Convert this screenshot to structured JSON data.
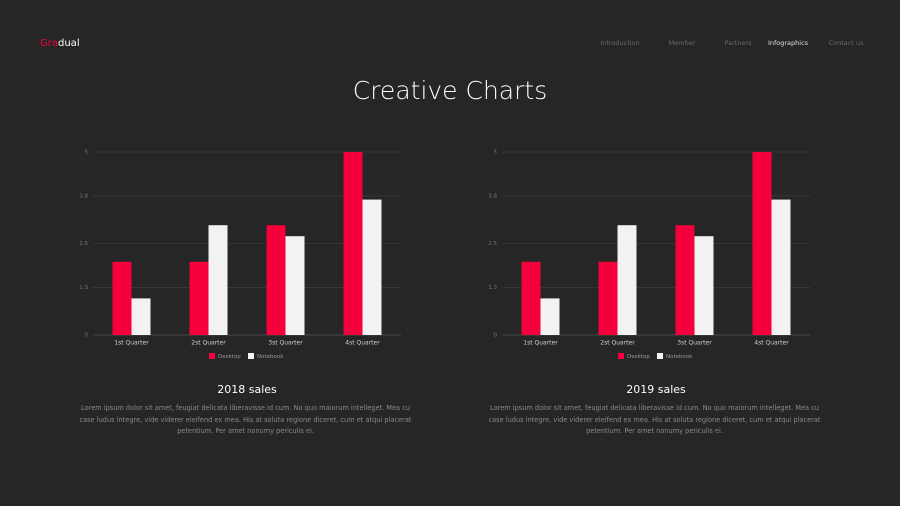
{
  "logo": {
    "accent": "Gra",
    "rest": "dual"
  },
  "nav": [
    "Introduction",
    "Member",
    "Partners",
    "Infographics",
    "Contact us"
  ],
  "nav_active": 3,
  "title": "Creative Charts",
  "chart_data": [
    {
      "type": "bar",
      "title": "2018 sales",
      "description": "Lorem ipsum dolor sit amet, feugiat delicata liberavisse id cum. No quo maiorum intelleget. Mea cu case ludus integre, vide viderer eleifend ex mea. His at soluta regione diceret, cum et atqui placerat petentium. Per amet nonumy periculis ei.",
      "categories": [
        "1st Quarter",
        "2st Quarter",
        "3st Quarter",
        "4st Quarter"
      ],
      "series": [
        {
          "name": "Desktop",
          "color": "#f5003d",
          "values": [
            2.0,
            2.0,
            3.0,
            5.0
          ]
        },
        {
          "name": "Notebook",
          "color": "#f2f2f2",
          "values": [
            1.0,
            3.0,
            2.7,
            3.7
          ]
        }
      ],
      "ylim": [
        0,
        5
      ],
      "yticks": [
        0,
        1.3,
        2.5,
        3.8,
        5
      ],
      "grid": true,
      "legend": "bottom"
    },
    {
      "type": "bar",
      "title": "2019 sales",
      "description": "Lorem ipsum dolor sit amet, feugiat delicata liberavisse id cum. No quo maiorum intelleget. Mea cu case ludus integre, vide viderer eleifend ex mea. His at soluta regione diceret, cum et atqui placerat petentium. Per amet nonumy periculis ei.",
      "categories": [
        "1st Quarter",
        "2st Quarter",
        "3st Quarter",
        "4st Quarter"
      ],
      "series": [
        {
          "name": "Desktop",
          "color": "#f5003d",
          "values": [
            2.0,
            2.0,
            3.0,
            5.0
          ]
        },
        {
          "name": "Notebook",
          "color": "#f2f2f2",
          "values": [
            1.0,
            3.0,
            2.7,
            3.7
          ]
        }
      ],
      "ylim": [
        0,
        5
      ],
      "yticks": [
        0,
        1.3,
        2.5,
        3.8,
        5
      ],
      "grid": true,
      "legend": "bottom"
    }
  ]
}
